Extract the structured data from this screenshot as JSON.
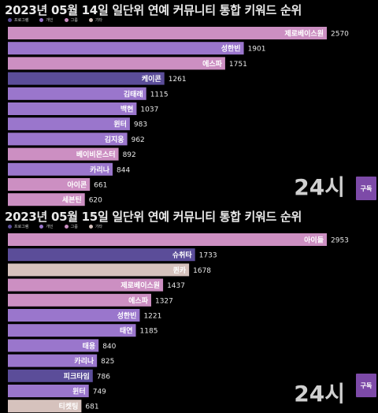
{
  "category_colors": {
    "프로그램": "#5b4d99",
    "개인": "#9a76cc",
    "그룹": "#cc8fc2",
    "기타": "#d6c2bd"
  },
  "subscribe_label": "구독",
  "chart_data": [
    {
      "type": "bar",
      "orientation": "horizontal",
      "title": "2023년 05월 14일 일단위 연예 커뮤니티 통합 키워드 순위",
      "legend": [
        "프로그램",
        "개인",
        "그룹",
        "기타"
      ],
      "legend_placement": "top-left",
      "hour_label": "24시",
      "xlim": [
        0,
        2570
      ],
      "grid": false,
      "bars": [
        {
          "label": "제로베이스원",
          "value": 2570,
          "category": "그룹"
        },
        {
          "label": "성한빈",
          "value": 1901,
          "category": "개인"
        },
        {
          "label": "에스파",
          "value": 1751,
          "category": "그룹"
        },
        {
          "label": "케이콘",
          "value": 1261,
          "category": "프로그램"
        },
        {
          "label": "김태래",
          "value": 1115,
          "category": "개인"
        },
        {
          "label": "백현",
          "value": 1037,
          "category": "개인"
        },
        {
          "label": "윈터",
          "value": 983,
          "category": "개인"
        },
        {
          "label": "김지웅",
          "value": 962,
          "category": "개인"
        },
        {
          "label": "베이비몬스터",
          "value": 892,
          "category": "그룹"
        },
        {
          "label": "카리나",
          "value": 844,
          "category": "개인"
        },
        {
          "label": "아이콘",
          "value": 661,
          "category": "그룹"
        },
        {
          "label": "세븐틴",
          "value": 620,
          "category": "그룹"
        }
      ]
    },
    {
      "type": "bar",
      "orientation": "horizontal",
      "title": "2023년 05월 15일 일단위 연예 커뮤니티 통합 키워드 순위",
      "legend": [
        "프로그램",
        "개인",
        "그룹",
        "기타"
      ],
      "legend_placement": "top-left",
      "hour_label": "24시",
      "xlim": [
        0,
        2953
      ],
      "grid": false,
      "bars": [
        {
          "label": "아이들",
          "value": 2953,
          "category": "그룹"
        },
        {
          "label": "슈취타",
          "value": 1733,
          "category": "프로그램"
        },
        {
          "label": "퀸카",
          "value": 1678,
          "category": "기타"
        },
        {
          "label": "제로베이스원",
          "value": 1437,
          "category": "그룹"
        },
        {
          "label": "에스파",
          "value": 1327,
          "category": "그룹"
        },
        {
          "label": "성한빈",
          "value": 1221,
          "category": "개인"
        },
        {
          "label": "태연",
          "value": 1185,
          "category": "개인"
        },
        {
          "label": "태용",
          "value": 840,
          "category": "개인"
        },
        {
          "label": "카리나",
          "value": 825,
          "category": "개인"
        },
        {
          "label": "피크타임",
          "value": 786,
          "category": "프로그램"
        },
        {
          "label": "윈터",
          "value": 749,
          "category": "개인"
        },
        {
          "label": "티켓팅",
          "value": 681,
          "category": "기타"
        }
      ]
    }
  ]
}
